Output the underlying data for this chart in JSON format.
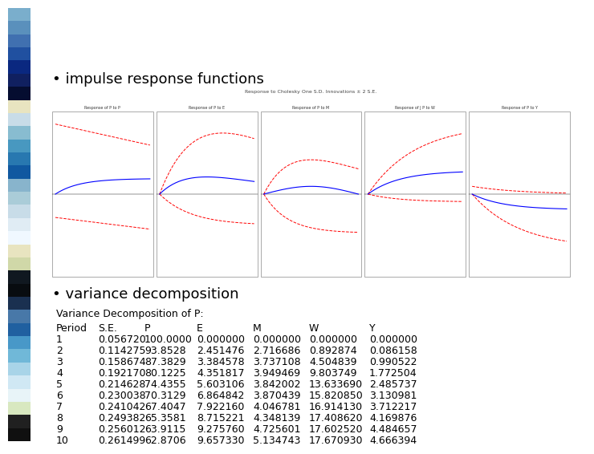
{
  "bullet1": "impulse response functions",
  "bullet2": "variance decomposition",
  "table_title": "Variance Decomposition of P:",
  "headers": [
    "Period",
    "S.E.",
    "P",
    "E",
    "M",
    "W",
    "Y"
  ],
  "rows": [
    [
      1,
      0.05672,
      100.0,
      0.0,
      0.0,
      0.0,
      0.0
    ],
    [
      2,
      0.114275,
      93.85281,
      2.451476,
      2.716686,
      0.892874,
      0.086158
    ],
    [
      3,
      0.158674,
      87.38295,
      3.384578,
      3.737108,
      4.504839,
      0.990522
    ],
    [
      4,
      0.19217,
      80.12246,
      4.351817,
      3.949469,
      9.803749,
      1.772504
    ],
    [
      5,
      0.214628,
      74.43547,
      5.603106,
      3.842002,
      13.63369,
      2.485737
    ],
    [
      6,
      0.230038,
      70.31289,
      6.864842,
      3.870439,
      15.82085,
      3.130981
    ],
    [
      7,
      0.241042,
      67.40471,
      7.92216,
      4.046781,
      16.91413,
      3.712217
    ],
    [
      8,
      0.249382,
      65.35814,
      8.715221,
      4.348139,
      17.40862,
      4.169876
    ],
    [
      9,
      0.256012,
      63.91147,
      9.27576,
      4.725601,
      17.60252,
      4.484657
    ],
    [
      10,
      0.261499,
      62.8706,
      9.65733,
      5.134743,
      17.67093,
      4.666394
    ]
  ],
  "bg_color": "#ffffff",
  "text_color": "#000000",
  "bullet_fontsize": 13,
  "table_title_fontsize": 9,
  "header_fontsize": 9,
  "row_fontsize": 9,
  "irf_title": "Response to Cholesky One S.D. Innovations ± 2 S.E.",
  "panel_titles": [
    "Response of P to P",
    "Response of P to E",
    "Response of P to M",
    "Response of J P to W",
    "Response of P to Y"
  ],
  "left_strip_colors": [
    "#7aaecc",
    "#5a90bc",
    "#4070b0",
    "#2050a0",
    "#0a2880",
    "#102060",
    "#050d30",
    "#e8e4c0",
    "#c8dce8",
    "#88bcd0",
    "#4898c0",
    "#2878b0",
    "#1058a0",
    "#88b4cc",
    "#aaccd8",
    "#c8dce8",
    "#e0ecf4",
    "#f0f8ff",
    "#e8e4c0",
    "#d0d8a8",
    "#101820",
    "#080c10",
    "#1a3050",
    "#4878a8",
    "#2060a0",
    "#4898c8",
    "#70b8d8",
    "#a8d4e8",
    "#d0e8f4",
    "#e8f4f8",
    "#d8e8c0",
    "#202020",
    "#101010"
  ]
}
